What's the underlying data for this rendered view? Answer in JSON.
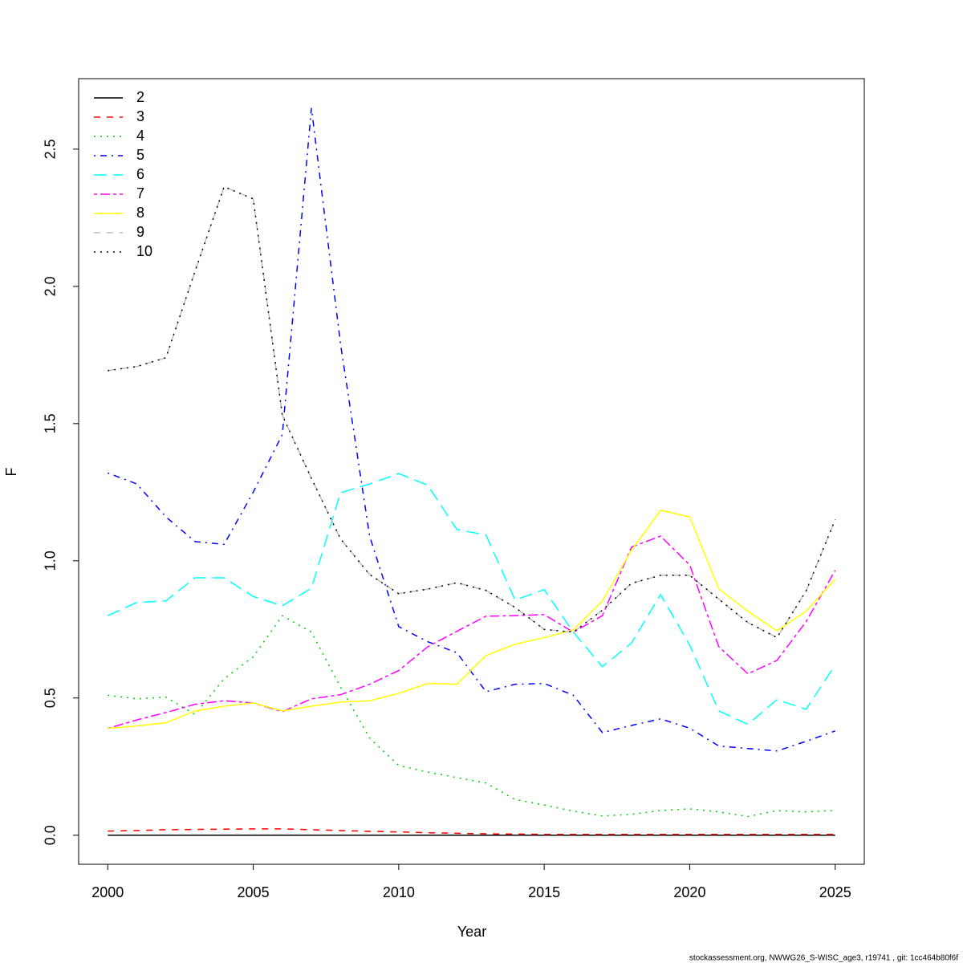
{
  "chart_data": {
    "type": "line",
    "x_label": "Year",
    "y_label": "F",
    "footnote": "stockassessment.org, NWWG26_S-WISC_age3, r19741 , git: 1cc464b80f6f",
    "x": [
      2000,
      2001,
      2002,
      2003,
      2004,
      2005,
      2006,
      2007,
      2008,
      2009,
      2010,
      2011,
      2012,
      2013,
      2014,
      2015,
      2016,
      2017,
      2018,
      2019,
      2020,
      2021,
      2022,
      2023,
      2024,
      2025
    ],
    "xlim": [
      1999,
      2026
    ],
    "xticks": [
      2000,
      2005,
      2010,
      2015,
      2020,
      2025
    ],
    "ylim": [
      -0.106,
      2.757
    ],
    "yticks": [
      {
        "value": 0,
        "label": "0.0"
      },
      0.5,
      {
        "value": 1,
        "label": "1.0"
      },
      1.5,
      {
        "value": 2,
        "label": "2.0"
      },
      2.5
    ],
    "legend": "top-left",
    "series": [
      {
        "name": "2",
        "color": "#000000",
        "dash": "solid",
        "values": [
          0,
          0,
          0,
          0,
          0,
          0,
          0,
          0,
          0,
          0,
          0,
          0,
          0,
          0,
          0,
          0,
          0,
          0,
          0,
          0,
          0,
          0,
          0,
          0,
          0,
          0
        ]
      },
      {
        "name": "3",
        "color": "#ff0000",
        "dash": "dashed",
        "values": [
          0.015,
          0.017,
          0.02,
          0.021,
          0.022,
          0.023,
          0.023,
          0.02,
          0.017,
          0.014,
          0.012,
          0.009,
          0.007,
          0.005,
          0.004,
          0.003,
          0.003,
          0.003,
          0.003,
          0.003,
          0.003,
          0.003,
          0.003,
          0.003,
          0.003,
          0.003
        ]
      },
      {
        "name": "4",
        "color": "#00cd00",
        "dash": "dotted",
        "values": [
          0.51,
          0.497,
          0.503,
          0.44,
          0.57,
          0.65,
          0.8,
          0.74,
          0.54,
          0.354,
          0.254,
          0.23,
          0.21,
          0.19,
          0.13,
          0.11,
          0.088,
          0.07,
          0.076,
          0.09,
          0.096,
          0.085,
          0.068,
          0.09,
          0.085,
          0.09
        ]
      },
      {
        "name": "5",
        "color": "#0000ff",
        "dash": "dotdash",
        "values": [
          1.32,
          1.28,
          1.16,
          1.07,
          1.06,
          1.25,
          1.46,
          2.65,
          1.79,
          1.09,
          0.76,
          0.705,
          0.665,
          0.523,
          0.55,
          0.553,
          0.51,
          0.374,
          0.4,
          0.424,
          0.39,
          0.325,
          0.316,
          0.307,
          0.342,
          0.38
        ]
      },
      {
        "name": "6",
        "color": "#00ffff",
        "dash": "longdash",
        "values": [
          0.8,
          0.848,
          0.854,
          0.938,
          0.938,
          0.87,
          0.836,
          0.9,
          1.248,
          1.28,
          1.318,
          1.275,
          1.114,
          1.094,
          0.857,
          0.895,
          0.74,
          0.614,
          0.7,
          0.877,
          0.693,
          0.453,
          0.404,
          0.494,
          0.459,
          0.62
        ]
      },
      {
        "name": "7",
        "color": "#ff00ff",
        "dash": "twodash",
        "values": [
          0.389,
          0.42,
          0.447,
          0.477,
          0.49,
          0.482,
          0.45,
          0.497,
          0.512,
          0.55,
          0.6,
          0.687,
          0.743,
          0.798,
          0.8,
          0.804,
          0.74,
          0.8,
          1.05,
          1.09,
          0.985,
          0.687,
          0.588,
          0.637,
          0.778,
          0.965
        ]
      },
      {
        "name": "8",
        "color": "#ffff00",
        "dash": "solid",
        "values": [
          0.389,
          0.398,
          0.41,
          0.453,
          0.47,
          0.482,
          0.453,
          0.47,
          0.485,
          0.49,
          0.517,
          0.553,
          0.55,
          0.655,
          0.696,
          0.72,
          0.748,
          0.854,
          1.038,
          1.184,
          1.16,
          0.898,
          0.816,
          0.745,
          0.816,
          0.933
        ]
      },
      {
        "name": "9",
        "color": "#bebebe",
        "dash": "dashed",
        "values": [
          1.693,
          1.708,
          1.74,
          2.055,
          2.363,
          2.319,
          1.53,
          1.3,
          1.08,
          0.95,
          0.88,
          0.897,
          0.92,
          0.892,
          0.83,
          0.75,
          0.74,
          0.82,
          0.918,
          0.947,
          0.947,
          0.86,
          0.775,
          0.72,
          0.89,
          1.15
        ]
      },
      {
        "name": "10",
        "color": "#000000",
        "dash": "dotted",
        "values": [
          1.693,
          1.708,
          1.74,
          2.055,
          2.363,
          2.319,
          1.53,
          1.3,
          1.08,
          0.95,
          0.88,
          0.897,
          0.92,
          0.892,
          0.83,
          0.75,
          0.74,
          0.82,
          0.918,
          0.947,
          0.947,
          0.86,
          0.775,
          0.72,
          0.89,
          1.15
        ]
      }
    ]
  }
}
